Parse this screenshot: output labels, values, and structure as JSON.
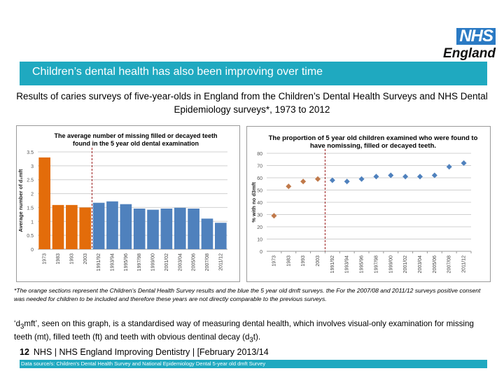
{
  "logo": {
    "nhs": "NHS",
    "england": "England",
    "nhs_color": "#2a7ac4"
  },
  "banner": {
    "title": "Children’s dental health has also been improving over time",
    "color": "#1fa9c0"
  },
  "subtitle": "Results of caries surveys of five-year-olds in England from the Children’s Dental Health Surveys and NHS Dental Epidemiology surveys*, 1973 to 2012",
  "chart_data": [
    {
      "type": "bar",
      "title": "The average number of missing filled or decayed teeth found in the 5 year old dental examination",
      "xlabel": "",
      "ylabel": "Average number of d₃mft",
      "ylim": [
        0,
        3.5
      ],
      "yticks": [
        "0",
        "0.5",
        "1",
        "1.5",
        "2",
        "2.5",
        "3",
        "3.5"
      ],
      "grid": true,
      "categories": [
        "1973",
        "1983",
        "1993",
        "2003",
        "1991/92",
        "1993/94",
        "1995/96",
        "1997/98",
        "1999/00",
        "2001/02",
        "2003/04",
        "2005/06",
        "2007/08",
        "2011/12"
      ],
      "values": [
        3.3,
        1.59,
        1.59,
        1.5,
        1.67,
        1.72,
        1.62,
        1.46,
        1.42,
        1.46,
        1.49,
        1.46,
        1.1,
        0.95
      ],
      "series_groups": [
        {
          "name": "Children's Dental Health Survey",
          "range": [
            0,
            3
          ],
          "color": "#e36c0a"
        },
        {
          "name": "5 year old dmft surveys",
          "range": [
            4,
            13
          ],
          "color": "#4f81bd"
        }
      ],
      "divider_after_index": 3,
      "divider_color": "#9b1c1c"
    },
    {
      "type": "scatter",
      "title": "The proportion of 5 year old children examined who were found to have nomissing, filled or decayed teeth.",
      "xlabel": "",
      "ylabel": "% with no d3mft",
      "ylim": [
        0,
        80
      ],
      "yticks": [
        "0",
        "10",
        "20",
        "30",
        "40",
        "50",
        "60",
        "70",
        "80"
      ],
      "grid": true,
      "categories": [
        "1973",
        "1983",
        "1993",
        "2003",
        "1991/92",
        "1993/94",
        "1995/96",
        "1997/98",
        "1999/00",
        "2001/02",
        "2003/04",
        "2005/06",
        "2007/08",
        "2011/12"
      ],
      "values": [
        29,
        53,
        57,
        59,
        58,
        57,
        59,
        61,
        62,
        61,
        61,
        62,
        69,
        72
      ],
      "series_groups": [
        {
          "name": "Children's Dental Health Survey",
          "range": [
            0,
            3
          ],
          "color": "#c0794a"
        },
        {
          "name": "5 year old dmft surveys",
          "range": [
            4,
            13
          ],
          "color": "#4f81bd"
        }
      ],
      "divider_after_index": 3,
      "divider_color": "#9b1c1c"
    }
  ],
  "note": "*The orange sections represent the Children's Dental Health Survey results and the blue the 5 year old dmft surveys. the For the 2007/08 and 2011/12 surveys positive consent was needed for children to be included and therefore these years are not directly comparable to the previous surveys.",
  "definition": {
    "pre": "‘d",
    "sub1": "3",
    "mid": "mft’, seen on this graph, is a standardised way of measuring dental health, which involves visual-only examination for missing teeth (mt), filled teeth (ft) and teeth with obvious dentinal decay (d",
    "sub2": "3",
    "post": "t)."
  },
  "footer": {
    "page": "12",
    "text": "NHS | NHS England Improving Dentistry | [February 2013/14"
  },
  "source": "Data source/s: Children's Dental Health Survey and National Epidemiology Dental 5-year old dmft Survey"
}
